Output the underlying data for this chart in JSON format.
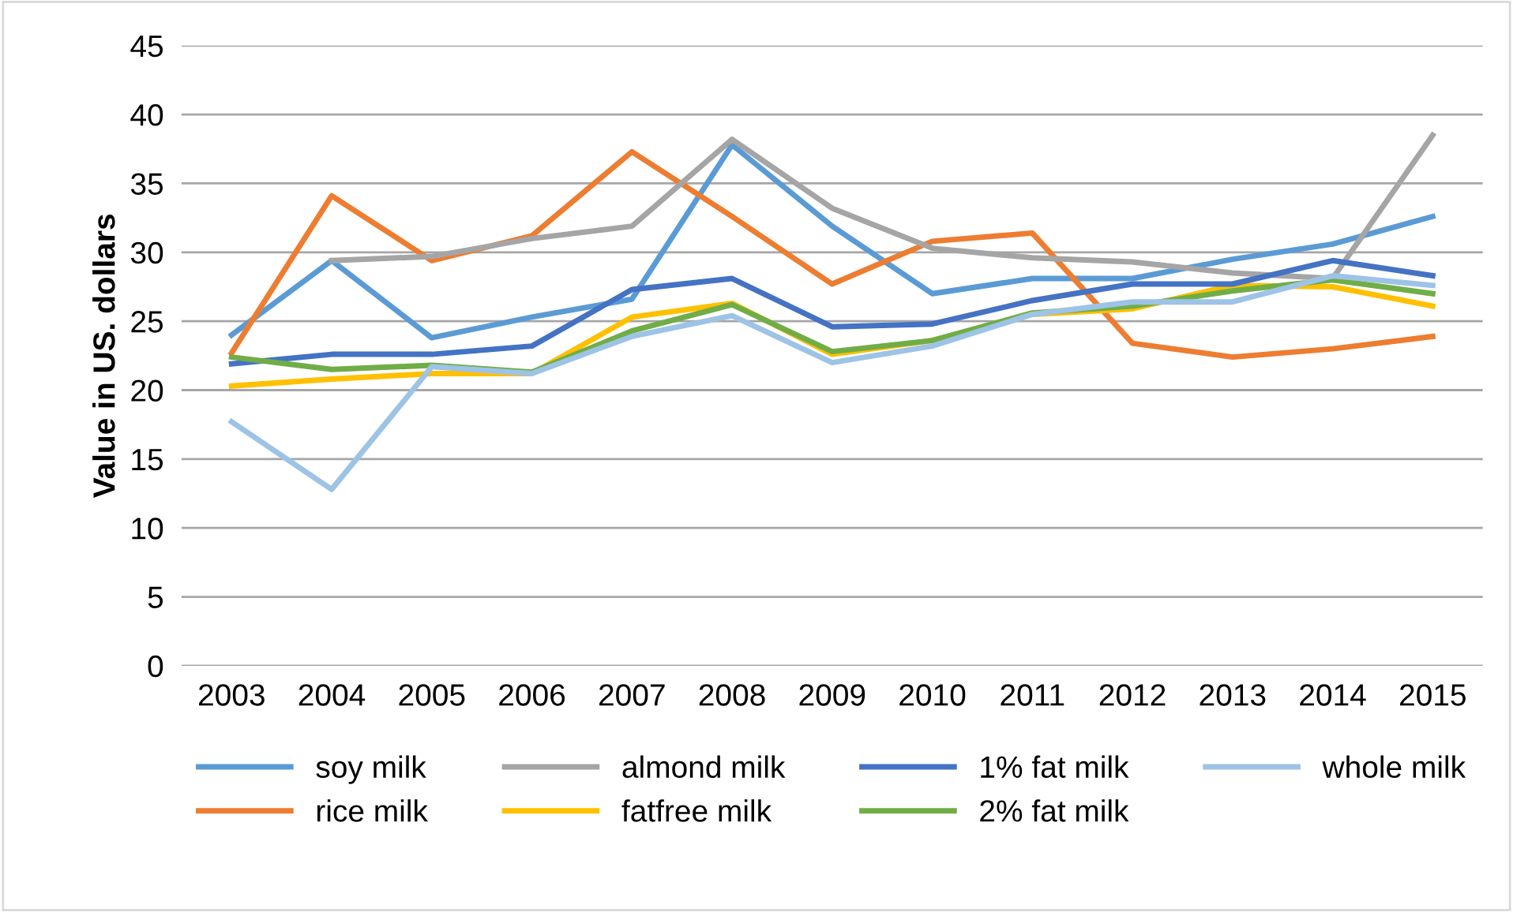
{
  "chart_data": {
    "type": "line",
    "ylabel": "Value in US. dollars",
    "categories": [
      "2003",
      "2004",
      "2005",
      "2006",
      "2007",
      "2008",
      "2009",
      "2010",
      "2011",
      "2012",
      "2013",
      "2014",
      "2015"
    ],
    "series": [
      {
        "name": "soy milk",
        "color": "#5b9bd5",
        "values": [
          24.0,
          29.4,
          23.8,
          25.3,
          26.6,
          37.8,
          31.9,
          27.0,
          28.1,
          28.1,
          29.5,
          30.6,
          32.6
        ]
      },
      {
        "name": "rice milk",
        "color": "#ed7d31",
        "values": [
          22.7,
          34.1,
          29.4,
          31.2,
          37.3,
          32.6,
          27.7,
          30.8,
          31.4,
          23.4,
          22.4,
          23.0,
          23.9
        ]
      },
      {
        "name": "almond milk",
        "color": "#a5a5a5",
        "values": [
          null,
          29.4,
          29.7,
          31.0,
          31.9,
          38.2,
          33.2,
          30.3,
          29.6,
          29.3,
          28.5,
          28.1,
          38.5
        ]
      },
      {
        "name": "fatfree milk",
        "color": "#ffc000",
        "values": [
          20.3,
          20.8,
          21.2,
          21.2,
          25.3,
          26.3,
          22.6,
          23.6,
          25.5,
          25.9,
          27.6,
          27.5,
          26.1
        ]
      },
      {
        "name": "1% fat milk",
        "color": "#4472c4",
        "values": [
          21.9,
          22.6,
          22.6,
          23.2,
          27.3,
          28.1,
          24.6,
          24.8,
          26.5,
          27.7,
          27.7,
          29.4,
          28.3
        ]
      },
      {
        "name": "2% fat milk",
        "color": "#70ad47",
        "values": [
          22.4,
          21.5,
          21.8,
          21.3,
          24.3,
          26.2,
          22.8,
          23.6,
          25.6,
          26.1,
          27.2,
          28.0,
          27.0
        ]
      },
      {
        "name": "whole milk",
        "color": "#9dc3e6",
        "values": [
          17.7,
          12.8,
          21.7,
          21.2,
          23.9,
          25.4,
          22.0,
          23.2,
          25.5,
          26.4,
          26.4,
          28.3,
          27.6
        ]
      }
    ],
    "ylim": [
      0,
      45
    ],
    "yticks": [
      0,
      5,
      10,
      15,
      20,
      25,
      30,
      35,
      40,
      45
    ],
    "grid": "y",
    "legend": "bottom",
    "marker": "none",
    "line_style": "solid"
  }
}
